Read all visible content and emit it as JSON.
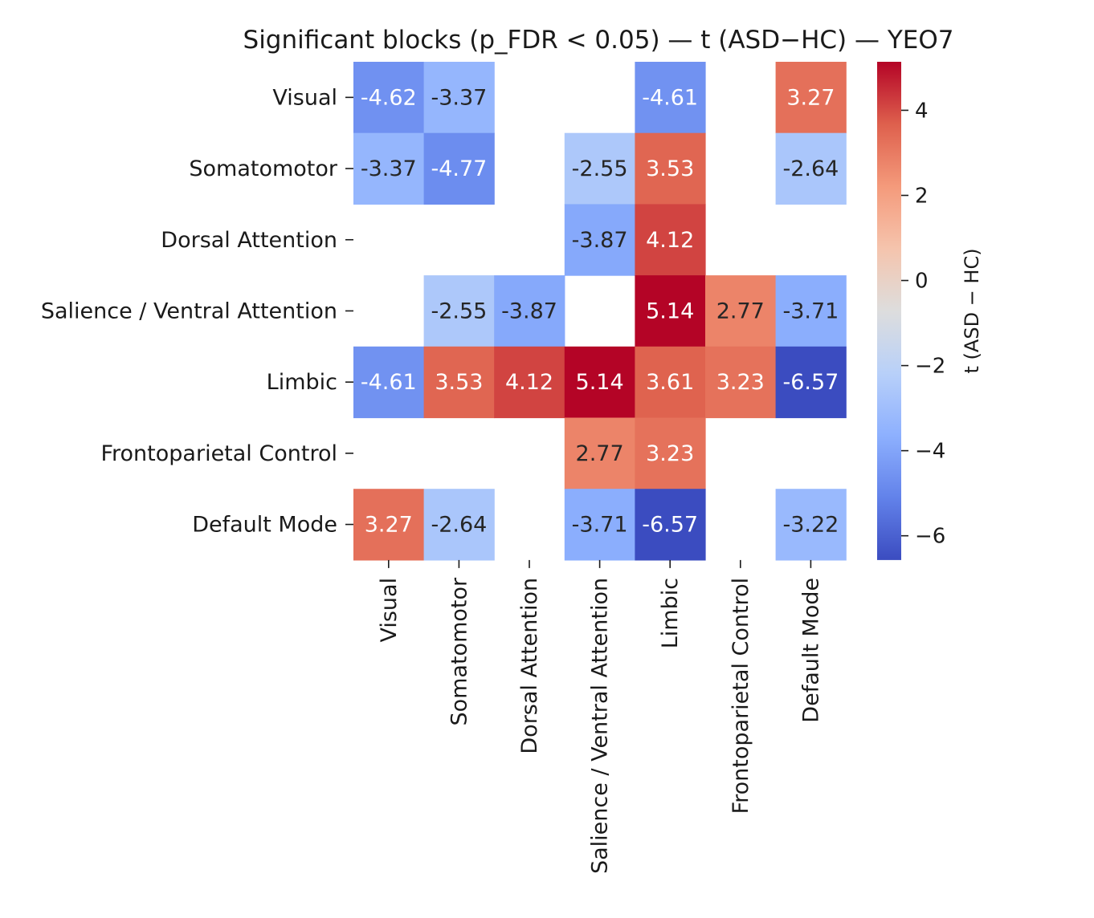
{
  "chart_data": {
    "type": "heatmap",
    "title": "Significant blocks (p_FDR < 0.05) — t (ASD−HC) — YEO7",
    "row_labels": [
      "Visual",
      "Somatomotor",
      "Dorsal Attention",
      "Salience / Ventral Attention",
      "Limbic",
      "Frontoparietal Control",
      "Default Mode"
    ],
    "col_labels": [
      "Visual",
      "Somatomotor",
      "Dorsal Attention",
      "Salience / Ventral Attention",
      "Limbic",
      "Frontoparietal Control",
      "Default Mode"
    ],
    "values": [
      [
        -4.62,
        -3.37,
        null,
        null,
        -4.61,
        null,
        3.27
      ],
      [
        -3.37,
        -4.77,
        null,
        -2.55,
        3.53,
        null,
        -2.64
      ],
      [
        null,
        null,
        null,
        -3.87,
        4.12,
        null,
        null
      ],
      [
        null,
        -2.55,
        -3.87,
        null,
        5.14,
        2.77,
        -3.71
      ],
      [
        -4.61,
        3.53,
        4.12,
        5.14,
        3.61,
        3.23,
        -6.57
      ],
      [
        null,
        null,
        null,
        2.77,
        3.23,
        null,
        null
      ],
      [
        3.27,
        -2.64,
        null,
        -3.71,
        -6.57,
        null,
        -3.22
      ]
    ],
    "cell_labels": [
      [
        "-4.62",
        "-3.37",
        "",
        "",
        "-4.61",
        "",
        "3.27"
      ],
      [
        "-3.37",
        "-4.77",
        "",
        "-2.55",
        "3.53",
        "",
        "-2.64"
      ],
      [
        "",
        "",
        "",
        "-3.87",
        "4.12",
        "",
        ""
      ],
      [
        "",
        "-2.55",
        "-3.87",
        "",
        "5.14",
        "2.77",
        "-3.71"
      ],
      [
        "-4.61",
        "3.53",
        "4.12",
        "5.14",
        "3.61",
        "3.23",
        "-6.57"
      ],
      [
        "",
        "",
        "",
        "2.77",
        "3.23",
        "",
        ""
      ],
      [
        "3.27",
        "-2.64",
        "",
        "-3.71",
        "-6.57",
        "",
        "-3.22"
      ]
    ],
    "colormap": "coolwarm",
    "vmin": -6.57,
    "vmax": 5.14,
    "colorbar": {
      "label": "t (ASD − HC)",
      "ticks": [
        4,
        2,
        0,
        -2,
        -4,
        -6
      ],
      "tick_labels": [
        "4",
        "2",
        "0",
        "−2",
        "−4",
        "−6"
      ]
    },
    "grid": false,
    "legend": "colorbar-right"
  }
}
